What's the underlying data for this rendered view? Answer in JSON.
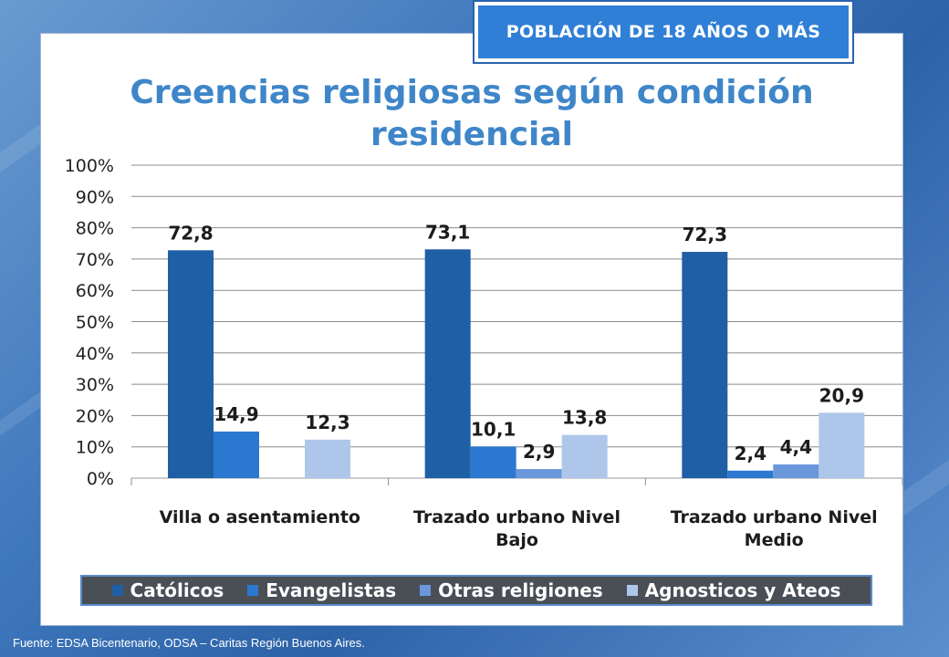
{
  "badge": {
    "text": "POBLACIÓN DE 18 AÑOS O MÁS"
  },
  "source": "Fuente:  EDSA Bicentenario,  ODSA – Caritas Región Buenos Aires.",
  "colors": {
    "catolicos": "#1f5fa6",
    "evangelistas": "#2a78d0",
    "otras": "#6a97dc",
    "agnosticos": "#aec6ea"
  },
  "chart_data": {
    "type": "bar",
    "title": "Creencias religiosas según condición residencial",
    "title_lines": [
      "Creencias religiosas según condición",
      "residencial"
    ],
    "categories": [
      "Villa o asentamiento",
      "Trazado urbano Nivel Bajo",
      "Trazado urbano Nivel Medio"
    ],
    "category_lines": [
      [
        "Villa o asentamiento"
      ],
      [
        "Trazado urbano Nivel",
        "Bajo"
      ],
      [
        "Trazado urbano Nivel",
        "Medio"
      ]
    ],
    "series": [
      {
        "name": "Católicos",
        "values": [
          72.8,
          73.1,
          72.3
        ],
        "labels": [
          "72,8",
          "73,1",
          "72,3"
        ]
      },
      {
        "name": "Evangelistas",
        "values": [
          14.9,
          10.1,
          2.4
        ],
        "labels": [
          "14,9",
          "10,1",
          "2,4"
        ]
      },
      {
        "name": "Otras religiones",
        "values": [
          null,
          2.9,
          4.4
        ],
        "labels": [
          "",
          "2,9",
          "4,4"
        ]
      },
      {
        "name": "Agnosticos y Ateos",
        "values": [
          12.3,
          13.8,
          20.9
        ],
        "labels": [
          "12,3",
          "13,8",
          "20,9"
        ]
      }
    ],
    "yticks": [
      "0%",
      "10%",
      "20%",
      "30%",
      "40%",
      "50%",
      "60%",
      "70%",
      "80%",
      "90%",
      "100%"
    ],
    "ylim": [
      0,
      100
    ],
    "grid": true,
    "legend": "bottom"
  }
}
